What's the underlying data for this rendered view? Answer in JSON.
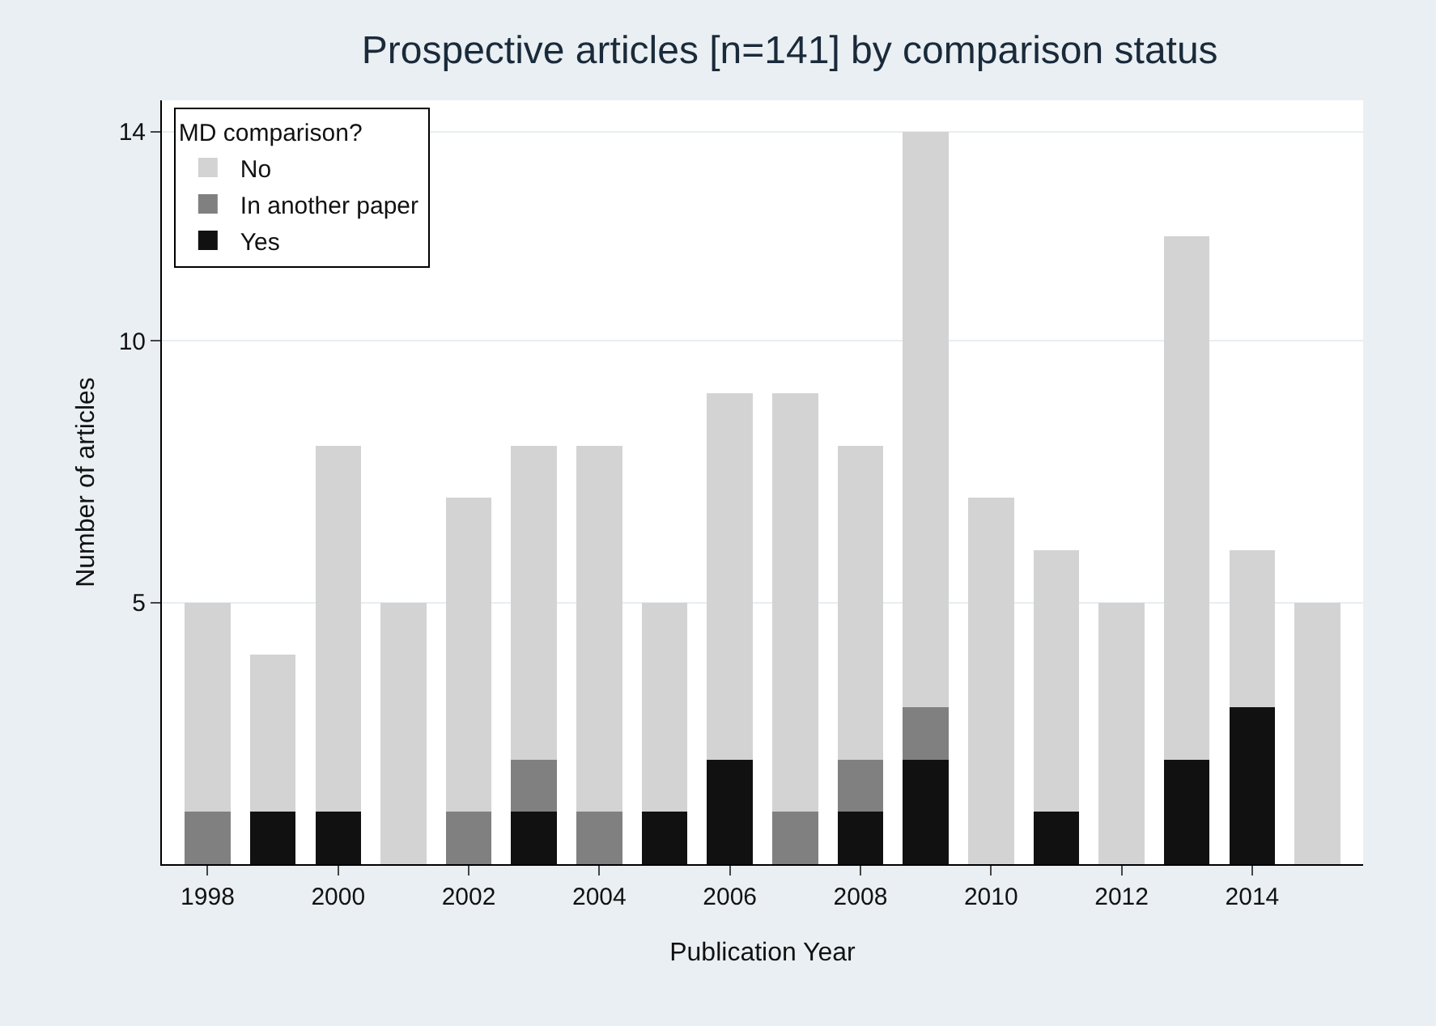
{
  "chart_data": {
    "type": "bar",
    "title": "Prospective articles [n=141] by comparison status",
    "xlabel": "Publication Year",
    "ylabel": "Number of articles",
    "legend_title": "MD comparison?",
    "x": [
      1998,
      1999,
      2000,
      2001,
      2002,
      2003,
      2004,
      2005,
      2006,
      2007,
      2008,
      2009,
      2010,
      2011,
      2012,
      2013,
      2014,
      2015
    ],
    "stacked": true,
    "series": [
      {
        "name": "Yes",
        "color": "#111111",
        "values": [
          0,
          1,
          1,
          0,
          0,
          1,
          0,
          1,
          2,
          0,
          1,
          2,
          0,
          1,
          0,
          2,
          3,
          0
        ]
      },
      {
        "name": "In another paper",
        "color": "#808080",
        "values": [
          1,
          0,
          0,
          0,
          1,
          1,
          1,
          0,
          0,
          1,
          1,
          1,
          0,
          0,
          0,
          0,
          0,
          0
        ]
      },
      {
        "name": "No",
        "color": "#d3d3d3",
        "values": [
          4,
          3,
          7,
          5,
          6,
          6,
          7,
          4,
          7,
          8,
          6,
          11,
          7,
          5,
          5,
          10,
          3,
          5
        ]
      }
    ],
    "xlim": [
      1997.3,
      2015.7
    ],
    "xticks": [
      1998,
      2000,
      2002,
      2004,
      2006,
      2008,
      2010,
      2012,
      2014
    ],
    "ylim": [
      0,
      14.6
    ],
    "yticks": [
      5,
      10,
      14
    ],
    "grid": "y",
    "legend": "top left"
  }
}
